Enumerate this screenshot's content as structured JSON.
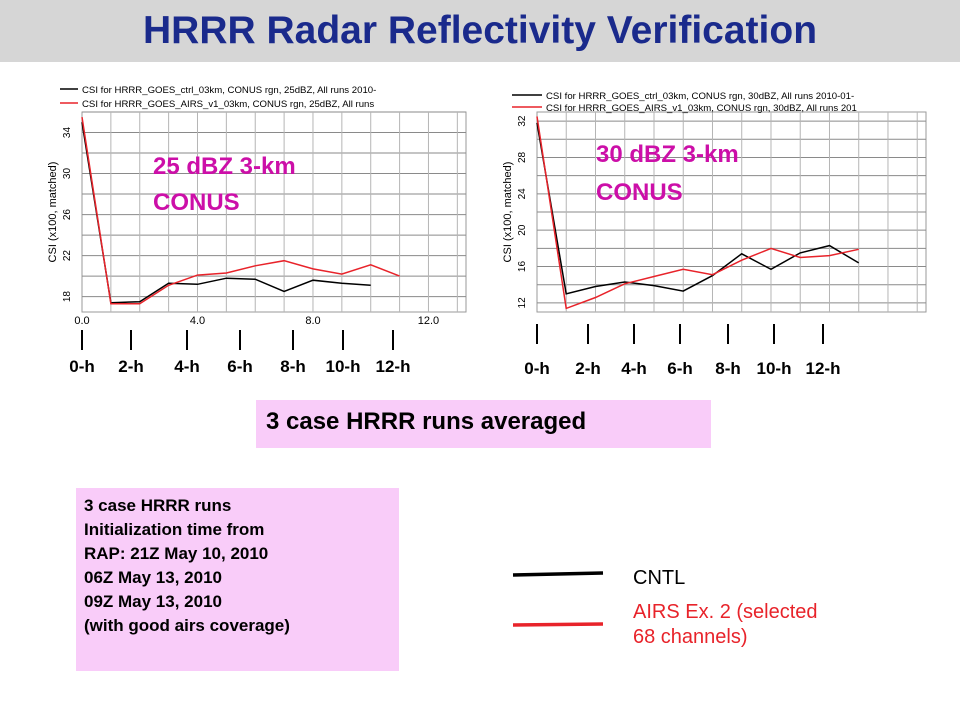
{
  "slide": {
    "title": "HRRR Radar Reflectivity Verification",
    "averaged_label": "3 case HRRR runs averaged",
    "info_lines": [
      "3 case HRRR runs",
      "Initialization time from",
      "RAP: 21Z May 10, 2010",
      "06Z May 13, 2010",
      "09Z May 13, 2010",
      "(with good airs coverage)"
    ],
    "legend": [
      {
        "label": "CNTL",
        "color": "#000000"
      },
      {
        "label_lines": [
          "AIRS Ex. 2 (selected",
          "68 channels)"
        ],
        "color": "#e8232a"
      }
    ],
    "hour_marks": [
      "0-h",
      "2-h",
      "4-h",
      "6-h",
      "8-h",
      "10-h",
      "12-h"
    ]
  },
  "colors": {
    "title": "#1a2a8c",
    "overlay": "#cc0fa8",
    "highlight_box": "#f9ccf9",
    "airs": "#e8232a",
    "cntl": "#000000"
  },
  "chart_data": [
    {
      "type": "line",
      "overlay": [
        "25 dBZ  3-km",
        "CONUS"
      ],
      "ylabel": "CSI (x100, matched)",
      "xlim": [
        0,
        13.3
      ],
      "ylim": [
        16.5,
        36
      ],
      "yticks": [
        18,
        22,
        26,
        30,
        34
      ],
      "xticks": [
        "0.0",
        "4.0",
        "8.0",
        "12.0"
      ],
      "xtick_values": [
        0,
        4,
        8,
        12
      ],
      "legend": [
        "CSI for HRRR_GOES_ctrl_03km, CONUS rgn, 25dBZ, All runs 2010-",
        "CSI for HRRR_GOES_AIRS_v1_03km, CONUS rgn, 25dBZ, All runs"
      ],
      "x": [
        0,
        1,
        2,
        3,
        4,
        5,
        6,
        7,
        8,
        9,
        10,
        11
      ],
      "series": [
        {
          "name": "CSI for HRRR_GOES_ctrl_03km, CONUS rgn, 25dBZ, All runs 2010-",
          "color": "#000000",
          "values": [
            35,
            17.4,
            17.5,
            19.3,
            19.2,
            19.8,
            19.7,
            18.5,
            19.6,
            19.3,
            19.1,
            null
          ]
        },
        {
          "name": "CSI for HRRR_GOES_AIRS_v1_03km, CONUS rgn, 25dBZ, All runs",
          "color": "#e8232a",
          "values": [
            35.5,
            17.3,
            17.3,
            19.1,
            20.1,
            20.3,
            21.0,
            21.5,
            20.7,
            20.2,
            21.1,
            20.0
          ]
        }
      ]
    },
    {
      "type": "line",
      "overlay": [
        "30 dBZ  3-km",
        "CONUS"
      ],
      "ylabel": "CSI (x100, matched)",
      "xlim": [
        0,
        13.3
      ],
      "ylim": [
        11,
        33
      ],
      "yticks": [
        12,
        16,
        20,
        24,
        28,
        32
      ],
      "xticks": [],
      "xtick_values": [],
      "legend": [
        "CSI for HRRR_GOES_ctrl_03km, CONUS rgn, 30dBZ, All runs 2010-01-",
        "CSI for HRRR_GOES_AIRS_v1_03km, CONUS rgn, 30dBZ, All runs 201"
      ],
      "x": [
        0,
        1,
        2,
        3,
        4,
        5,
        6,
        7,
        8,
        9,
        10,
        11
      ],
      "series": [
        {
          "name": "CSI for HRRR_GOES_ctrl_03km, CONUS rgn, 30dBZ, All runs 2010-01-",
          "color": "#000000",
          "values": [
            31.8,
            13.0,
            13.8,
            14.3,
            13.9,
            13.3,
            15.0,
            17.4,
            15.7,
            17.5,
            18.3,
            16.4
          ]
        },
        {
          "name": "CSI for HRRR_GOES_AIRS_v1_03km, CONUS rgn, 30dBZ, All runs 201",
          "color": "#e8232a",
          "values": [
            32.5,
            11.4,
            12.6,
            14.1,
            14.9,
            15.7,
            15.1,
            16.7,
            18.0,
            17.0,
            17.2,
            17.9
          ]
        }
      ]
    }
  ]
}
